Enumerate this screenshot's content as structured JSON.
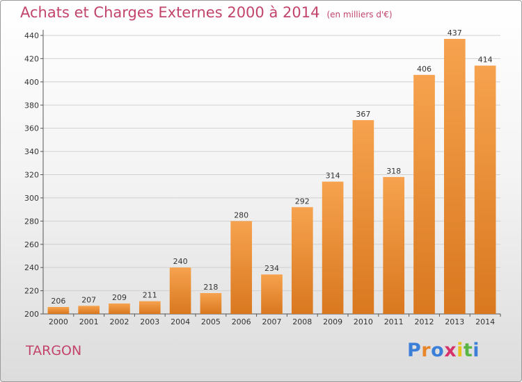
{
  "header": {
    "title": "Achats et Charges Externes 2000 à 2014",
    "subtitle": "(en milliers d'€)"
  },
  "footer": {
    "place": "TARGON",
    "logo_text": "Proxiti",
    "logo_letters": [
      {
        "ch": "P",
        "color": "#3b7fd8"
      },
      {
        "ch": "r",
        "color": "#e8872a"
      },
      {
        "ch": "o",
        "color": "#3b7fd8"
      },
      {
        "ch": "x",
        "color": "#d6336c"
      },
      {
        "ch": "i",
        "color": "#e8c21c"
      },
      {
        "ch": "t",
        "color": "#5ab644"
      },
      {
        "ch": "i",
        "color": "#3b7fd8"
      }
    ]
  },
  "colors": {
    "accent": "#c2446b",
    "bar_light": "#f6a24e",
    "bar_dark": "#d9781f"
  },
  "chart_data": {
    "type": "bar",
    "categories": [
      "2000",
      "2001",
      "2002",
      "2003",
      "2004",
      "2005",
      "2006",
      "2007",
      "2008",
      "2009",
      "2010",
      "2011",
      "2012",
      "2013",
      "2014"
    ],
    "values": [
      206,
      207,
      209,
      211,
      240,
      218,
      280,
      234,
      292,
      314,
      367,
      318,
      406,
      437,
      414
    ],
    "title": "Achats et Charges Externes 2000 à 2014",
    "subtitle": "(en milliers d'€)",
    "ylim": [
      200,
      440
    ],
    "yticks": [
      200,
      220,
      240,
      260,
      280,
      300,
      320,
      340,
      360,
      380,
      400,
      420,
      440
    ],
    "grid": true
  }
}
